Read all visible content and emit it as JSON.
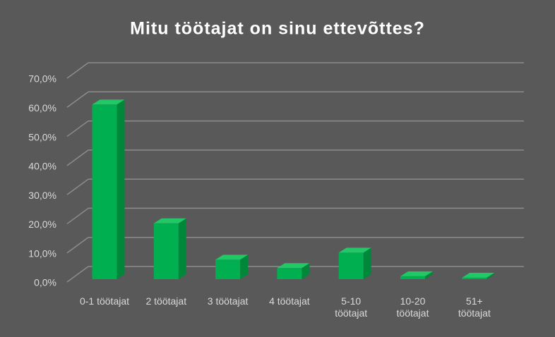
{
  "chart_data": {
    "type": "bar",
    "title": "Mitu töötajat on sinu ettevõttes?",
    "categories": [
      "0-1 töötajat",
      "2 töötajat",
      "3 töötajat",
      "4 töötajat",
      "5-10 töötajat",
      "10-20 töötajat",
      "51+ töötajat"
    ],
    "values": [
      60,
      19.2,
      6.7,
      3.8,
      9.1,
      1.0,
      0.5
    ],
    "color": "#00b050",
    "ylim": [
      0,
      70
    ],
    "yticks": [
      {
        "value": 0,
        "label": "0,0%"
      },
      {
        "value": 10,
        "label": "10,0%"
      },
      {
        "value": 20,
        "label": "20,0%"
      },
      {
        "value": 30,
        "label": "30,0%"
      },
      {
        "value": 40,
        "label": "40,0%"
      },
      {
        "value": 50,
        "label": "50,0%"
      },
      {
        "value": 60,
        "label": "60,0%"
      },
      {
        "value": 70,
        "label": "70,0%"
      }
    ],
    "grid": true
  }
}
